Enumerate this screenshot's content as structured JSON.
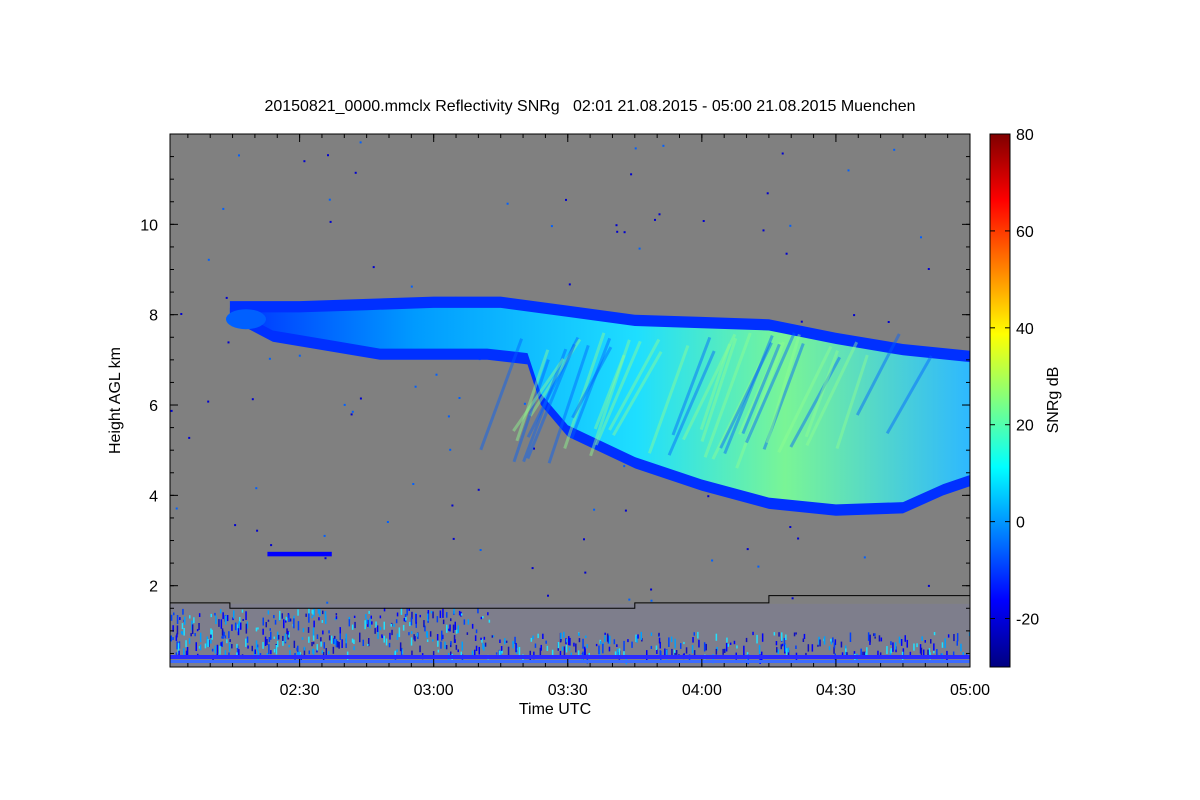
{
  "chart_data": {
    "type": "heatmap",
    "title": "20150821_0000.mmclx Reflectivity SNRg   02:01 21.08.2015 - 05:00 21.08.2015 Muenchen",
    "xlabel": "Time UTC",
    "ylabel": "Height AGL km",
    "colorbar_label": "SNRg dB",
    "x_range_hours": [
      2.0167,
      5.0
    ],
    "y_range_km": [
      0.2,
      12.0
    ],
    "x_ticks": [
      {
        "value": 2.5,
        "label": "02:30"
      },
      {
        "value": 3.0,
        "label": "03:00"
      },
      {
        "value": 3.5,
        "label": "03:30"
      },
      {
        "value": 4.0,
        "label": "04:00"
      },
      {
        "value": 4.5,
        "label": "04:30"
      },
      {
        "value": 5.0,
        "label": "05:00"
      }
    ],
    "y_ticks": [
      {
        "value": 2,
        "label": "2"
      },
      {
        "value": 4,
        "label": "4"
      },
      {
        "value": 6,
        "label": "6"
      },
      {
        "value": 8,
        "label": "8"
      },
      {
        "value": 10,
        "label": "10"
      }
    ],
    "colorbar_range_db": [
      -30,
      80
    ],
    "colorbar_ticks": [
      {
        "value": -20,
        "label": "-20"
      },
      {
        "value": 0,
        "label": "0"
      },
      {
        "value": 20,
        "label": "20"
      },
      {
        "value": 40,
        "label": "40"
      },
      {
        "value": 60,
        "label": "60"
      },
      {
        "value": 80,
        "label": "80"
      }
    ],
    "colormap": [
      "#000080",
      "#0000ff",
      "#0080ff",
      "#00ffff",
      "#80ff80",
      "#ffff00",
      "#ff8000",
      "#ff0000",
      "#800000"
    ],
    "background_color": "#808080",
    "cloud_top_km": [
      [
        2.24,
        8.3
      ],
      [
        2.5,
        8.3
      ],
      [
        2.75,
        8.35
      ],
      [
        3.0,
        8.4
      ],
      [
        3.25,
        8.4
      ],
      [
        3.5,
        8.2
      ],
      [
        3.75,
        8.0
      ],
      [
        4.0,
        7.95
      ],
      [
        4.25,
        7.9
      ],
      [
        4.5,
        7.6
      ],
      [
        4.75,
        7.35
      ],
      [
        5.0,
        7.2
      ]
    ],
    "cloud_base_km": [
      [
        2.24,
        7.9
      ],
      [
        2.4,
        7.4
      ],
      [
        2.6,
        7.2
      ],
      [
        2.8,
        7.0
      ],
      [
        3.0,
        7.0
      ],
      [
        3.2,
        7.0
      ],
      [
        3.35,
        6.9
      ],
      [
        3.4,
        6.0
      ],
      [
        3.5,
        5.3
      ],
      [
        3.75,
        4.6
      ],
      [
        4.0,
        4.1
      ],
      [
        4.25,
        3.7
      ],
      [
        4.5,
        3.55
      ],
      [
        4.75,
        3.6
      ],
      [
        4.9,
        4.0
      ],
      [
        5.0,
        4.2
      ]
    ],
    "boundary_layer_km": [
      [
        2.0167,
        1.62
      ],
      [
        2.24,
        1.62
      ],
      [
        2.24,
        1.5
      ],
      [
        3.75,
        1.5
      ],
      [
        3.75,
        1.62
      ],
      [
        4.25,
        1.62
      ],
      [
        4.25,
        1.78
      ],
      [
        5.0,
        1.78
      ]
    ],
    "low_echo_km": {
      "x": [
        2.38,
        2.62
      ],
      "y": [
        2.65,
        2.75
      ]
    },
    "clutter_top_km": 1.6
  }
}
